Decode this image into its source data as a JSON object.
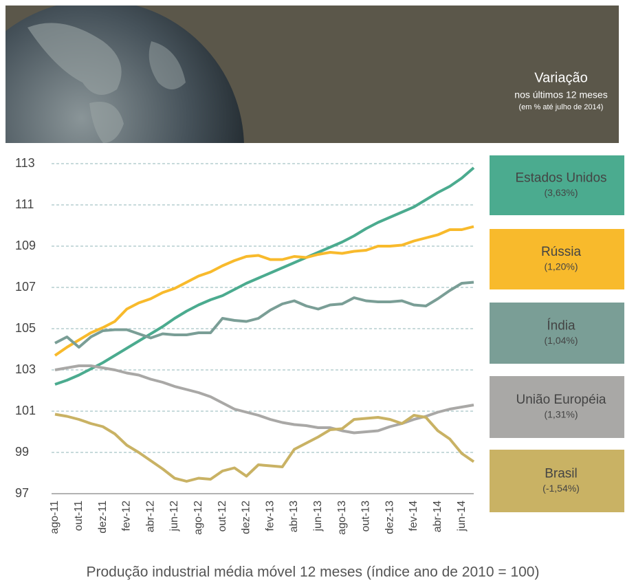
{
  "chart_data": {
    "type": "line",
    "title": "Variação",
    "subtitle": "nos últimos 12 meses",
    "note": "(em % até julho de 2014)",
    "xlabel": "Produção industrial média móvel 12 meses (índice ano de 2010 = 100)",
    "categories": [
      "ago-11",
      null,
      "out-11",
      null,
      "dez-11",
      null,
      "fev-12",
      null,
      "abr-12",
      null,
      "jun-12",
      null,
      "ago-12",
      null,
      "out-12",
      null,
      "dez-12",
      null,
      "fev-13",
      null,
      "abr-13",
      null,
      "jun-13",
      null,
      "ago-13",
      null,
      "out-13",
      null,
      "dez-13",
      null,
      "fev-14",
      null,
      "abr-14",
      null,
      "jun-14",
      null
    ],
    "ylim": [
      97,
      113
    ],
    "yticks": [
      97,
      99,
      101,
      103,
      105,
      107,
      109,
      111,
      113
    ],
    "grid": true,
    "series": [
      {
        "name": "Estados Unidos",
        "change": "(3,63%)",
        "color": "#4bab8f",
        "values": [
          102.3,
          102.5,
          102.75,
          103.05,
          103.35,
          103.7,
          104.05,
          104.4,
          104.75,
          105.1,
          105.5,
          105.85,
          106.15,
          106.4,
          106.6,
          106.9,
          107.2,
          107.45,
          107.7,
          107.95,
          108.2,
          108.45,
          108.7,
          108.95,
          109.2,
          109.5,
          109.85,
          110.15,
          110.4,
          110.65,
          110.9,
          111.25,
          111.6,
          111.9,
          112.3,
          112.8
        ]
      },
      {
        "name": "Rússia",
        "change": "(1,20%)",
        "color": "#f8ba2c",
        "values": [
          103.7,
          104.1,
          104.45,
          104.8,
          105.05,
          105.35,
          105.95,
          106.25,
          106.45,
          106.75,
          106.95,
          107.25,
          107.55,
          107.75,
          108.05,
          108.3,
          108.5,
          108.55,
          108.35,
          108.35,
          108.5,
          108.45,
          108.6,
          108.7,
          108.65,
          108.75,
          108.8,
          109.0,
          109.0,
          109.05,
          109.25,
          109.4,
          109.55,
          109.8,
          109.8,
          109.95
        ]
      },
      {
        "name": "Índia",
        "change": "(1,04%)",
        "color": "#7a9e96",
        "values": [
          104.3,
          104.6,
          104.1,
          104.6,
          104.9,
          104.95,
          104.95,
          104.75,
          104.55,
          104.75,
          104.7,
          104.7,
          104.8,
          104.8,
          105.5,
          105.4,
          105.35,
          105.5,
          105.9,
          106.2,
          106.35,
          106.1,
          105.95,
          106.15,
          106.2,
          106.5,
          106.35,
          106.3,
          106.3,
          106.35,
          106.15,
          106.1,
          106.45,
          106.85,
          107.2,
          107.25
        ]
      },
      {
        "name": "União Européia",
        "change": "(1,31%)",
        "color": "#a9a8a6",
        "values": [
          103.0,
          103.1,
          103.2,
          103.2,
          103.1,
          103.0,
          102.85,
          102.75,
          102.55,
          102.4,
          102.2,
          102.05,
          101.9,
          101.7,
          101.4,
          101.1,
          100.95,
          100.8,
          100.6,
          100.45,
          100.35,
          100.3,
          100.2,
          100.2,
          100.05,
          99.95,
          100.0,
          100.05,
          100.25,
          100.4,
          100.6,
          100.75,
          100.95,
          101.1,
          101.2,
          101.3
        ]
      },
      {
        "name": "Brasil",
        "change": "(-1,54%)",
        "color": "#c9b264",
        "values": [
          100.85,
          100.75,
          100.6,
          100.4,
          100.25,
          99.9,
          99.35,
          99.0,
          98.6,
          98.2,
          97.75,
          97.6,
          97.75,
          97.7,
          98.1,
          98.25,
          97.85,
          98.4,
          98.35,
          98.3,
          99.15,
          99.45,
          99.75,
          100.1,
          100.15,
          100.6,
          100.65,
          100.7,
          100.6,
          100.4,
          100.8,
          100.7,
          100.05,
          99.65,
          98.95,
          98.55
        ]
      }
    ]
  }
}
